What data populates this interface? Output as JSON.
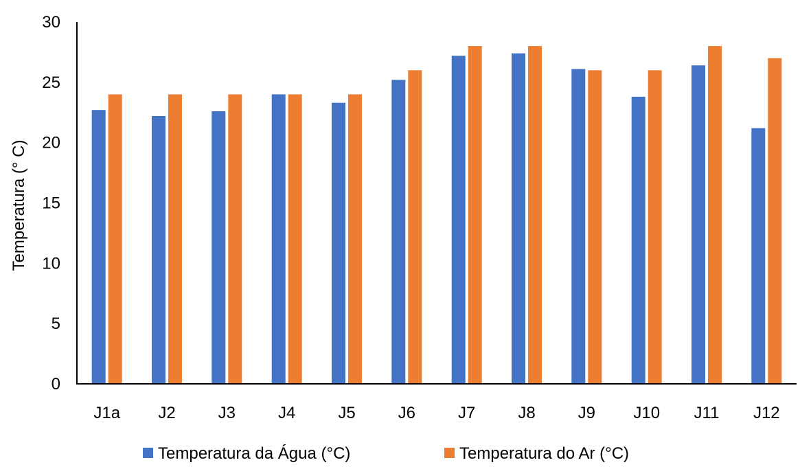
{
  "chart_data": {
    "type": "bar",
    "ylabel": "Temperatura (° C)",
    "xlabel": "",
    "ylim": [
      0,
      30
    ],
    "yticks": [
      0,
      5,
      10,
      15,
      20,
      25,
      30
    ],
    "grid": false,
    "legend_position": "bottom",
    "categories": [
      "J1a",
      "J2",
      "J3",
      "J4",
      "J5",
      "J6",
      "J7",
      "J8",
      "J9",
      "J10",
      "J11",
      "J12"
    ],
    "series": [
      {
        "name": "Temperatura da Água (°C)",
        "color": "#4472C4",
        "values": [
          22.7,
          22.2,
          22.6,
          24.0,
          23.3,
          25.2,
          27.2,
          27.4,
          26.1,
          23.8,
          26.4,
          21.2
        ]
      },
      {
        "name": "Temperatura do Ar (°C)",
        "color": "#ED7D31",
        "values": [
          24,
          24,
          24,
          24,
          24,
          26,
          28,
          28,
          26,
          26,
          28,
          27
        ]
      }
    ]
  }
}
